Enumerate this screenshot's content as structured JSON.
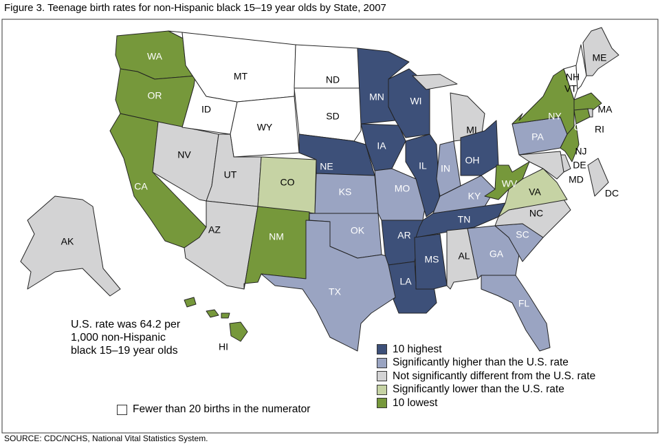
{
  "title": "Figure 3. Teenage birth rates for non-Hispanic black 15–19 year olds by State, 2007",
  "source": "SOURCE: CDC/NCHS, National Vital Statistics System.",
  "note_lines": [
    "U.S. rate was 64.2 per",
    "1,000 non-Hispanic",
    "black 15–19 year olds"
  ],
  "categories": {
    "highest": {
      "label": "10 highest",
      "color": "#3d5079",
      "text": "#fff"
    },
    "higher": {
      "label": "Significantly higher than the U.S. rate",
      "color": "#9aa4c2",
      "text": "#fff"
    },
    "notsig": {
      "label": "Not significantly different from the U.S. rate",
      "color": "#d3d3d4",
      "text": "#000"
    },
    "lower": {
      "label": "Significantly lower than the U.S. rate",
      "color": "#c6d3a4",
      "text": "#000"
    },
    "lowest": {
      "label": "10 lowest",
      "color": "#76983b",
      "text": "#fff"
    },
    "few": {
      "label": "Fewer than 20 births in the numerator",
      "color": "#ffffff",
      "text": "#000"
    }
  },
  "states": {
    "WA": "lowest",
    "OR": "lowest",
    "CA": "lowest",
    "NV": "notsig",
    "ID": "few",
    "MT": "few",
    "WY": "few",
    "UT": "notsig",
    "AZ": "notsig",
    "CO": "lower",
    "NM": "lowest",
    "ND": "few",
    "SD": "few",
    "NE": "highest",
    "KS": "higher",
    "OK": "higher",
    "TX": "higher",
    "MN": "highest",
    "IA": "highest",
    "MO": "higher",
    "AR": "highest",
    "LA": "highest",
    "WI": "highest",
    "IL": "highest",
    "MI": "notsig",
    "IN": "higher",
    "OH": "highest",
    "KY": "higher",
    "TN": "highest",
    "MS": "highest",
    "AL": "notsig",
    "GA": "higher",
    "FL": "higher",
    "SC": "higher",
    "NC": "notsig",
    "VA": "lower",
    "WV": "lowest",
    "PA": "higher",
    "NY": "lowest",
    "VT": "few",
    "NH": "few",
    "ME": "notsig",
    "MA": "lowest",
    "CT": "lowest",
    "RI": "notsig",
    "NJ": "lowest",
    "DE": "notsig",
    "MD": "notsig",
    "DC": "notsig",
    "AK": "notsig",
    "HI": "lowest"
  }
}
